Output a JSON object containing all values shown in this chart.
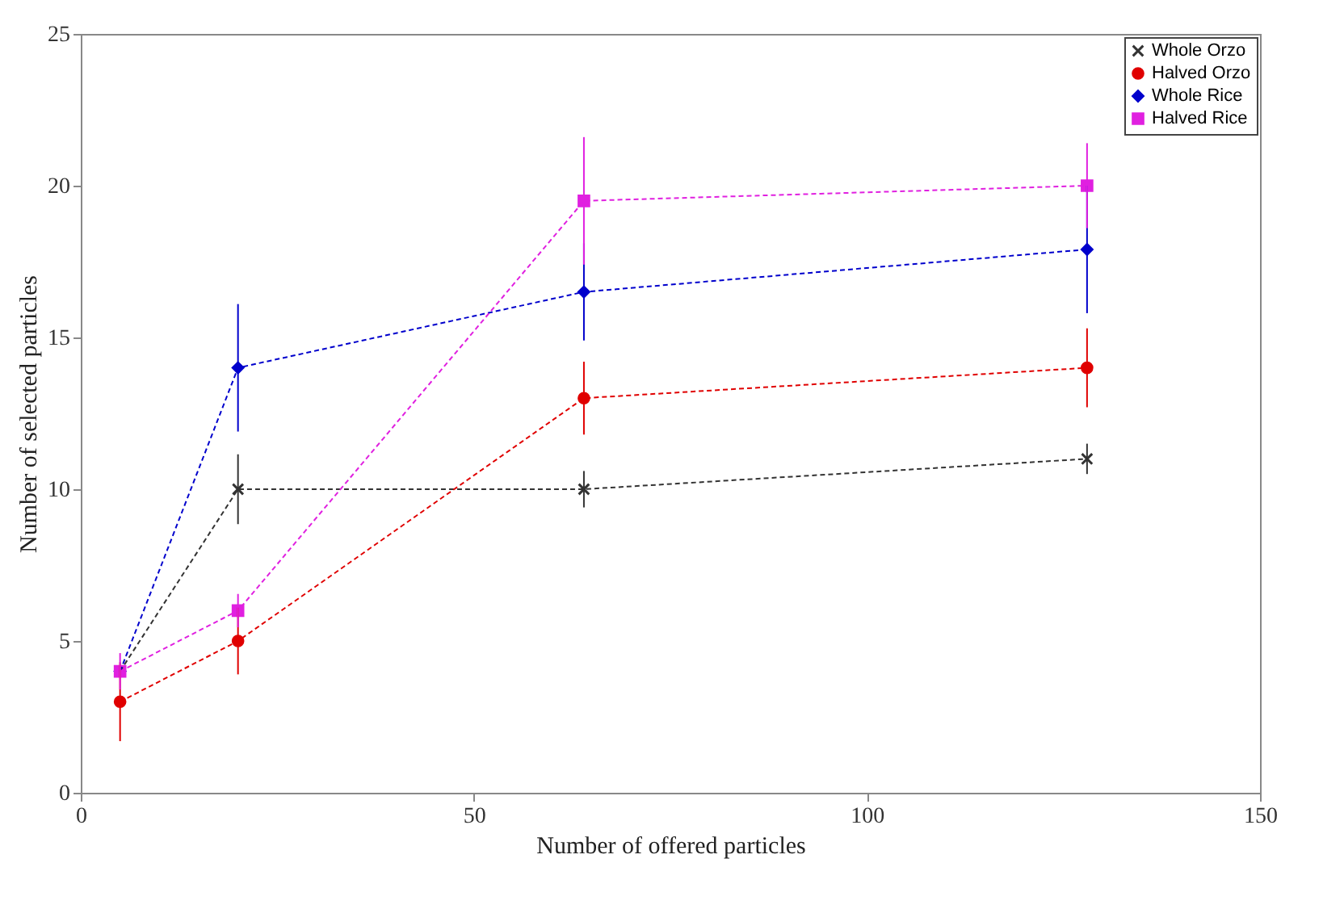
{
  "chart_data": {
    "type": "line",
    "xlabel": "Number of offered particles",
    "ylabel": "Number of selected particles",
    "x": [
      5,
      20,
      64,
      128
    ],
    "series": [
      {
        "name": "Whole Orzo",
        "color": "#333333",
        "marker": "cross",
        "values": [
          4,
          10,
          10,
          11
        ],
        "errors": [
          null,
          1.15,
          0.6,
          0.5
        ]
      },
      {
        "name": "Halved Orzo",
        "color": "#e00000",
        "marker": "circle",
        "values": [
          3,
          5,
          13,
          14
        ],
        "errors": [
          1.3,
          1.1,
          1.2,
          1.3
        ]
      },
      {
        "name": "Whole Rice",
        "color": "#0000cc",
        "marker": "diamond",
        "values": [
          4,
          14,
          16.5,
          17.9
        ],
        "errors": [
          null,
          2.1,
          1.6,
          2.1
        ]
      },
      {
        "name": "Halved Rice",
        "color": "#e020e0",
        "marker": "square",
        "values": [
          4,
          6,
          19.5,
          20
        ],
        "errors": [
          0.6,
          0.55,
          2.1,
          1.4
        ]
      }
    ],
    "xlim": [
      0,
      150
    ],
    "xticks": [
      0,
      50,
      100,
      150
    ],
    "ylim": [
      0,
      25
    ],
    "yticks": [
      0,
      5,
      10,
      15,
      20,
      25
    ],
    "line_style": "dashed",
    "legend": "top right",
    "grid": false
  }
}
